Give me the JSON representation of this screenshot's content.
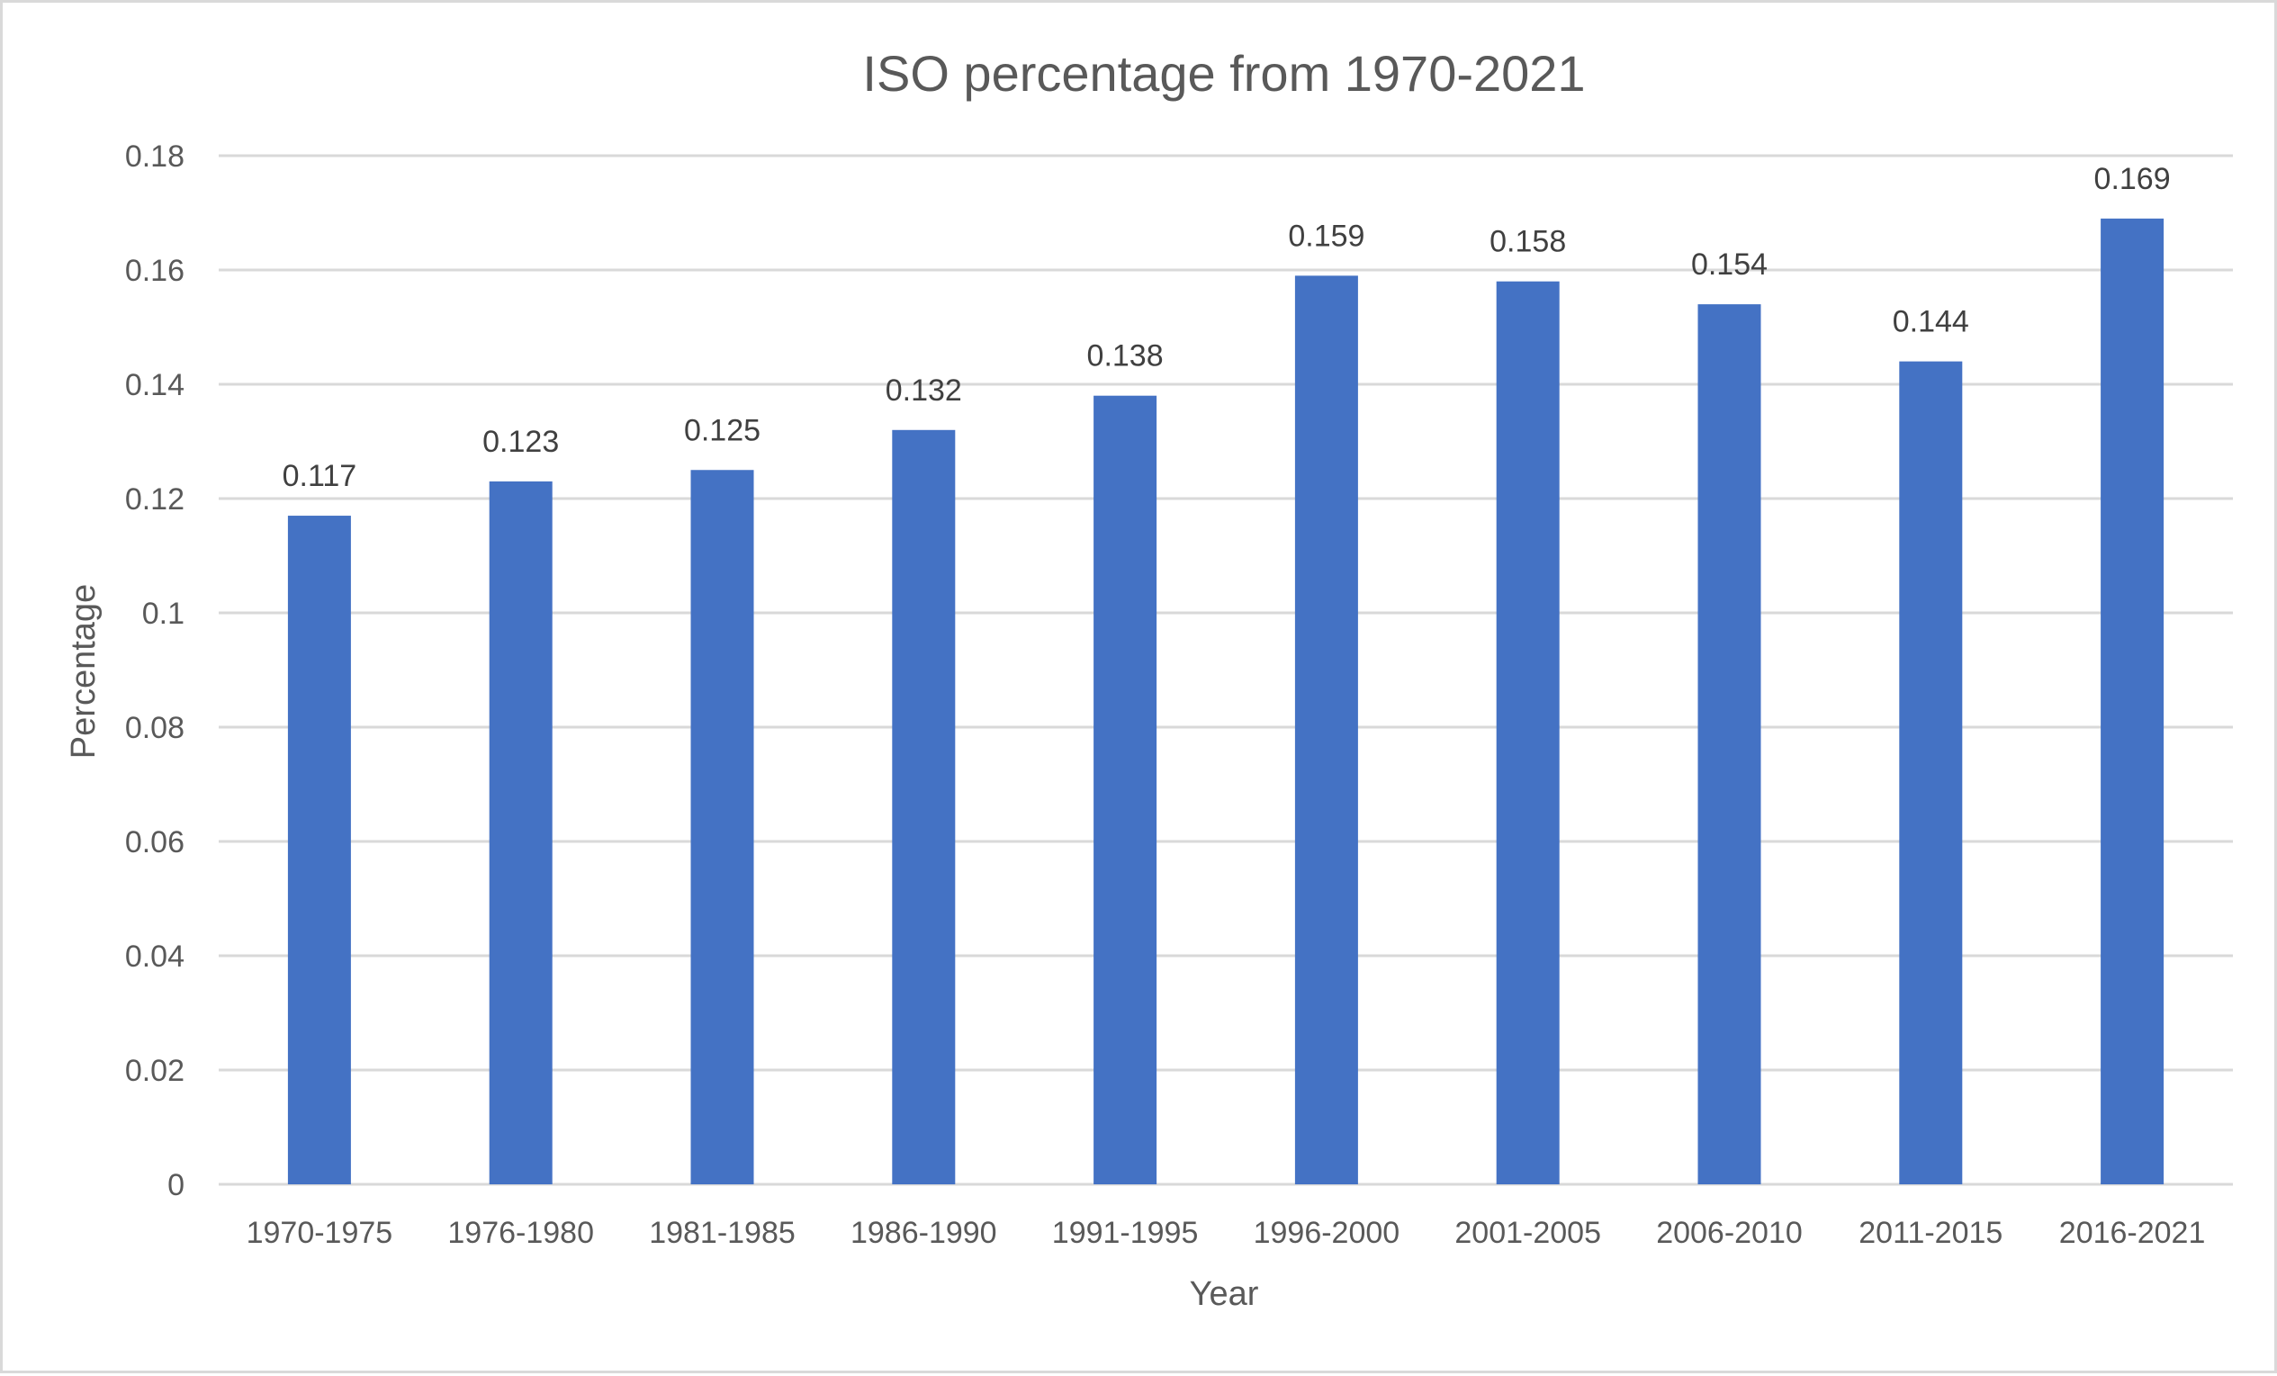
{
  "chart_data": {
    "type": "bar",
    "title": "ISO percentage from 1970-2021",
    "xlabel": "Year",
    "ylabel": "Percentage",
    "categories": [
      "1970-1975",
      "1976-1980",
      "1981-1985",
      "1986-1990",
      "1991-1995",
      "1996-2000",
      "2001-2005",
      "2006-2010",
      "2011-2015",
      "2016-2021"
    ],
    "values": [
      0.117,
      0.123,
      0.125,
      0.132,
      0.138,
      0.159,
      0.158,
      0.154,
      0.144,
      0.169
    ],
    "data_labels": [
      "0.117",
      "0.123",
      "0.125",
      "0.132",
      "0.138",
      "0.159",
      "0.158",
      "0.154",
      "0.144",
      "0.169"
    ],
    "yticks": [
      0,
      0.02,
      0.04,
      0.06,
      0.08,
      0.1,
      0.12,
      0.14,
      0.16,
      0.18
    ],
    "ytick_labels": [
      "0",
      "0.02",
      "0.04",
      "0.06",
      "0.08",
      "0.1",
      "0.12",
      "0.14",
      "0.16",
      "0.18"
    ],
    "ylim": [
      0,
      0.18
    ],
    "grid": true,
    "legend": "none",
    "bar_color": "#4472c4"
  }
}
